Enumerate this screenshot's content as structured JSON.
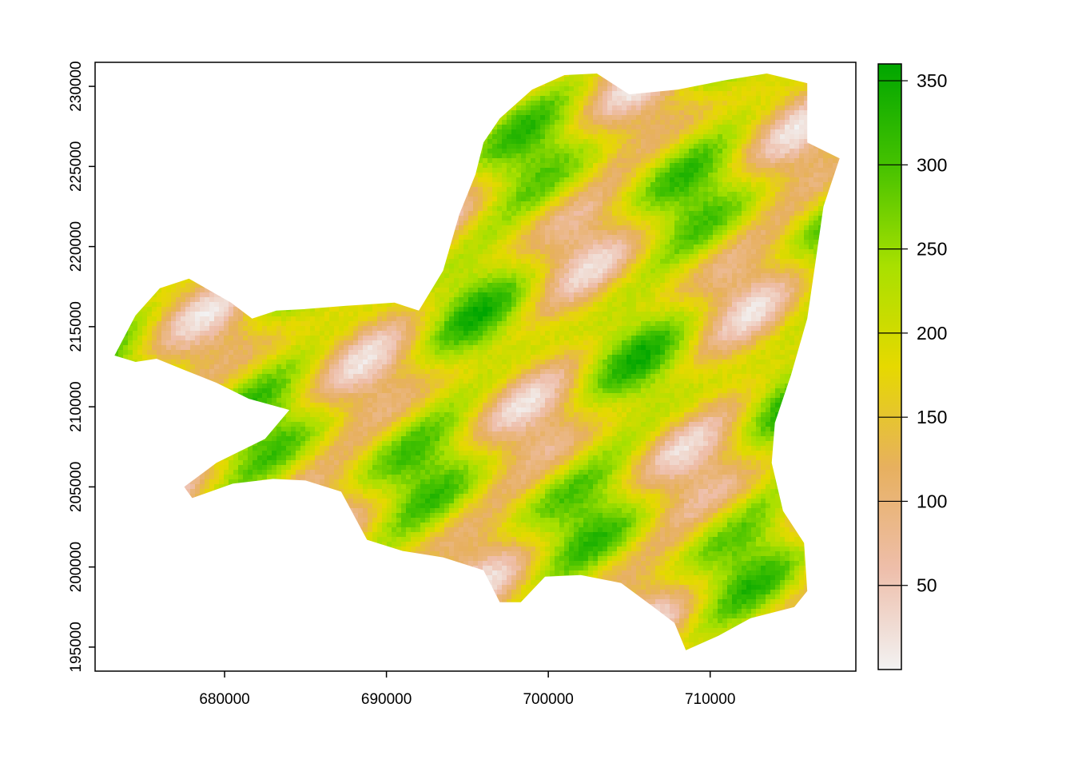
{
  "chart_data": {
    "type": "heatmap",
    "title": "",
    "xlabel": "",
    "ylabel": "",
    "xlim": [
      672000,
      719000
    ],
    "ylim": [
      193500,
      231500
    ],
    "x_ticks": [
      680000,
      690000,
      700000,
      710000
    ],
    "y_ticks": [
      195000,
      200000,
      205000,
      210000,
      215000,
      220000,
      225000,
      230000
    ],
    "legend": {
      "placement": "right",
      "type": "continuous",
      "range": [
        0,
        360
      ],
      "ticks": [
        50,
        100,
        150,
        200,
        250,
        300,
        350
      ]
    },
    "color_ramp": [
      "#F2F2F2",
      "#EEBEAA",
      "#E7B05F",
      "#E6D900",
      "#A8E000",
      "#45C200",
      "#00A600"
    ],
    "extent_outline": [
      [
        673200,
        213200
      ],
      [
        674500,
        215700
      ],
      [
        676000,
        217400
      ],
      [
        677800,
        218000
      ],
      [
        680400,
        216500
      ],
      [
        681700,
        215500
      ],
      [
        683200,
        216000
      ],
      [
        685000,
        216100
      ],
      [
        687500,
        216300
      ],
      [
        690500,
        216500
      ],
      [
        692000,
        216000
      ],
      [
        693500,
        218500
      ],
      [
        694500,
        222000
      ],
      [
        695500,
        224500
      ],
      [
        696000,
        226500
      ],
      [
        697000,
        228000
      ],
      [
        699000,
        229800
      ],
      [
        701000,
        230700
      ],
      [
        703000,
        230800
      ],
      [
        705000,
        229500
      ],
      [
        708000,
        229800
      ],
      [
        711000,
        230400
      ],
      [
        713500,
        230800
      ],
      [
        716000,
        230200
      ],
      [
        716000,
        226500
      ],
      [
        718000,
        225500
      ],
      [
        717000,
        222500
      ],
      [
        716500,
        219000
      ],
      [
        716000,
        215500
      ],
      [
        715000,
        212000
      ],
      [
        714000,
        209000
      ],
      [
        713800,
        206500
      ],
      [
        714500,
        203500
      ],
      [
        715800,
        201500
      ],
      [
        716000,
        198500
      ],
      [
        715200,
        197500
      ],
      [
        712500,
        196800
      ],
      [
        710500,
        195700
      ],
      [
        708500,
        194800
      ],
      [
        707800,
        196500
      ],
      [
        706500,
        197500
      ],
      [
        704500,
        199000
      ],
      [
        702000,
        199500
      ],
      [
        699800,
        199400
      ],
      [
        698300,
        197800
      ],
      [
        697000,
        197800
      ],
      [
        696000,
        199800
      ],
      [
        693500,
        200600
      ],
      [
        691000,
        201000
      ],
      [
        688800,
        201700
      ],
      [
        687200,
        204700
      ],
      [
        685000,
        205400
      ],
      [
        683000,
        205500
      ],
      [
        680500,
        205200
      ],
      [
        678000,
        204300
      ],
      [
        677500,
        205000
      ],
      [
        679500,
        206500
      ],
      [
        682500,
        208000
      ],
      [
        684000,
        209800
      ],
      [
        681500,
        210500
      ],
      [
        679500,
        211500
      ],
      [
        677500,
        212300
      ],
      [
        675800,
        213000
      ],
      [
        674500,
        212800
      ],
      [
        673200,
        213200
      ]
    ]
  }
}
